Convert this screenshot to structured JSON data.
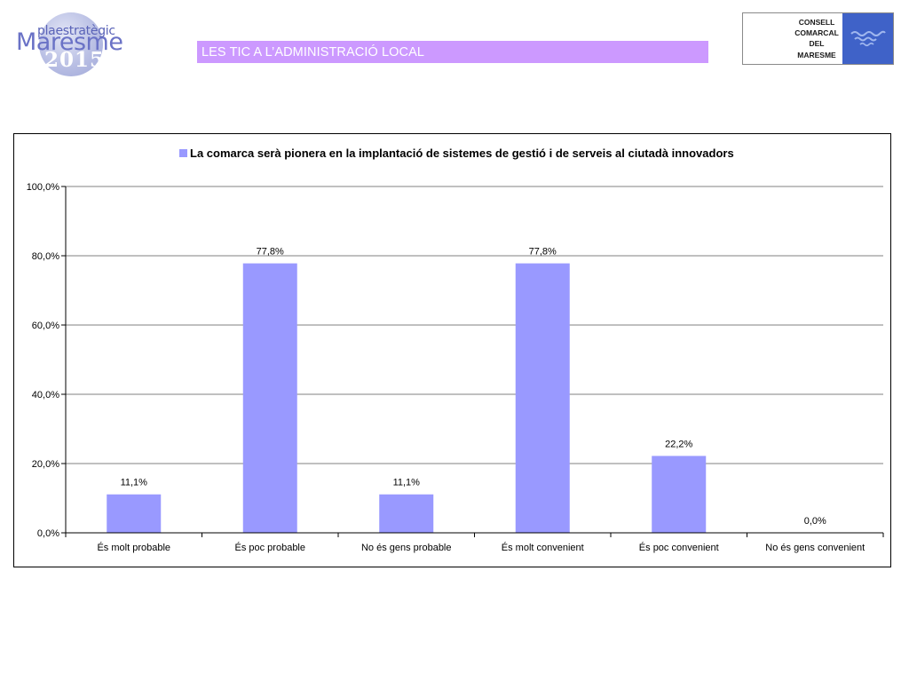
{
  "logo": {
    "top_text": "plaestratègic",
    "main_text": "Maresme",
    "year_text": "2015"
  },
  "header": {
    "title": "LES TIC A L’ADMINISTRACIÓ LOCAL"
  },
  "consell": {
    "lines": [
      "CONSELL",
      "COMARCAL",
      "DEL",
      "MARESME"
    ]
  },
  "colors": {
    "title_bar": "#cc99ff",
    "bar": "#9999ff",
    "gridline": "#808080"
  },
  "chart_data": {
    "type": "bar",
    "legend_position": "top",
    "grid": true,
    "categories": [
      "És molt probable",
      "És poc probable",
      "No és gens probable",
      "És molt convenient",
      "És poc convenient",
      "No és gens convenient"
    ],
    "series": [
      {
        "name": "La comarca serà pionera en la implantació de sistemes de gestió i de serveis al ciutadà innovadors",
        "values": [
          11.1,
          77.8,
          11.1,
          77.8,
          22.2,
          0.0
        ]
      }
    ],
    "data_labels": [
      "11,1%",
      "77,8%",
      "11,1%",
      "77,8%",
      "22,2%",
      "0,0%"
    ],
    "y_ticks": [
      0,
      20,
      40,
      60,
      80,
      100
    ],
    "y_tick_labels": [
      "0,0%",
      "20,0%",
      "40,0%",
      "60,0%",
      "80,0%",
      "100,0%"
    ],
    "ylim": [
      0,
      100
    ]
  }
}
